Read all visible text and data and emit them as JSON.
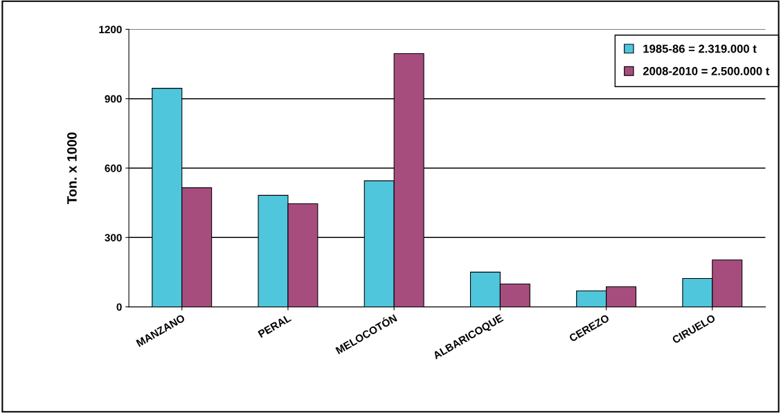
{
  "chart_data": {
    "type": "bar",
    "ylabel": "Ton. x 1000",
    "categories": [
      "MANZANO",
      "PERAL",
      "MELOCOTÓN",
      "ALBARICOQUE",
      "CEREZO",
      "CIRUELO"
    ],
    "series": [
      {
        "name": "1985-86 = 2.319.000 t",
        "color": "#4fc6dc",
        "values": [
          945,
          482,
          545,
          150,
          69,
          123
        ]
      },
      {
        "name": "2008-2010 = 2.500.000 t",
        "color": "#a64d7e",
        "values": [
          515,
          446,
          1095,
          99,
          87,
          203
        ]
      }
    ],
    "ylim": [
      0,
      1200
    ],
    "yticks": [
      0,
      300,
      600,
      900,
      1200
    ],
    "grid": "y",
    "legend": "top right"
  }
}
